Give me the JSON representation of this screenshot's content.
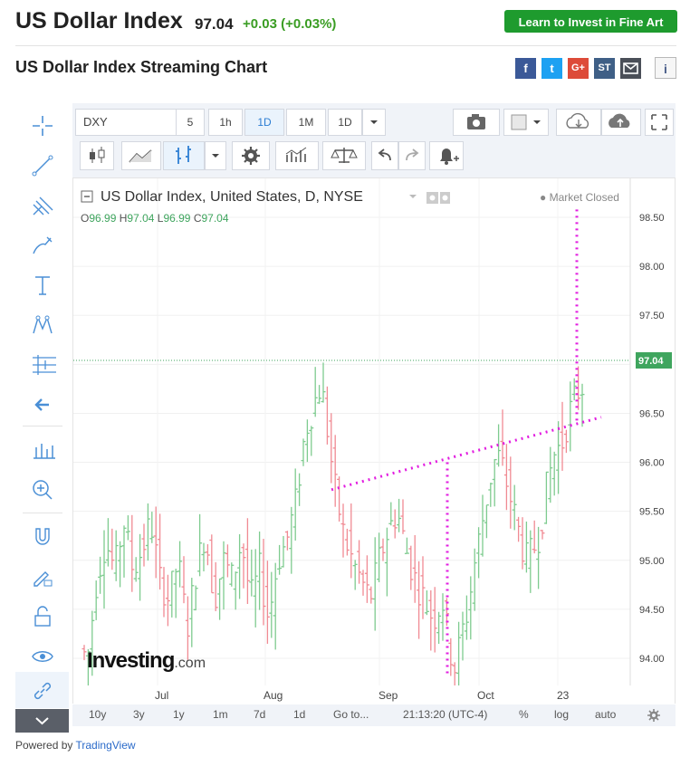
{
  "header": {
    "title": "US Dollar Index",
    "price": "97.04",
    "change": "+0.03 (+0.03%)",
    "cta": "Learn to Invest in Fine Art"
  },
  "subtitle": "US Dollar Index Streaming Chart",
  "share": [
    "f",
    "t",
    "G+",
    "ST",
    "mail"
  ],
  "info": "i",
  "toolbar": {
    "symbol": "DXY",
    "intervals": [
      "5",
      "1h",
      "1D",
      "1M",
      "1D"
    ],
    "active_interval": "1D"
  },
  "chart": {
    "legend_title": "US Dollar Index, United States, D, NYSE",
    "market_status": "Market Closed",
    "ohlc": {
      "o_label": "O",
      "o": "96.99",
      "h_label": "H",
      "h": "97.04",
      "l_label": "L",
      "l": "96.99",
      "c_label": "C",
      "c": "97.04"
    },
    "price_tag": "97.04",
    "watermark": "Investing",
    "watermark_suffix": ".com"
  },
  "chart_data": {
    "type": "ohlc-bar",
    "y_ticks": [
      "98.50",
      "98.00",
      "97.50",
      "97.00",
      "96.50",
      "96.00",
      "95.50",
      "95.00",
      "94.50",
      "94.00"
    ],
    "x_ticks": [
      "Jul",
      "Aug",
      "Sep",
      "Oct",
      "23"
    ],
    "ylim": [
      93.8,
      98.8
    ],
    "last_price": 97.04,
    "colors": {
      "up": "#7ecb8f",
      "down": "#f08a93",
      "drawing": "#e21ee0",
      "last": "#3fa55e"
    }
  },
  "bottom": {
    "ranges": [
      "10y",
      "3y",
      "1y",
      "1m",
      "7d",
      "1d"
    ],
    "goto": "Go to...",
    "time": "21:13:20 (UTC-4)",
    "percent": "%",
    "log": "log",
    "auto": "auto"
  },
  "powered_by": "Powered by",
  "powered_brand": "TradingView"
}
